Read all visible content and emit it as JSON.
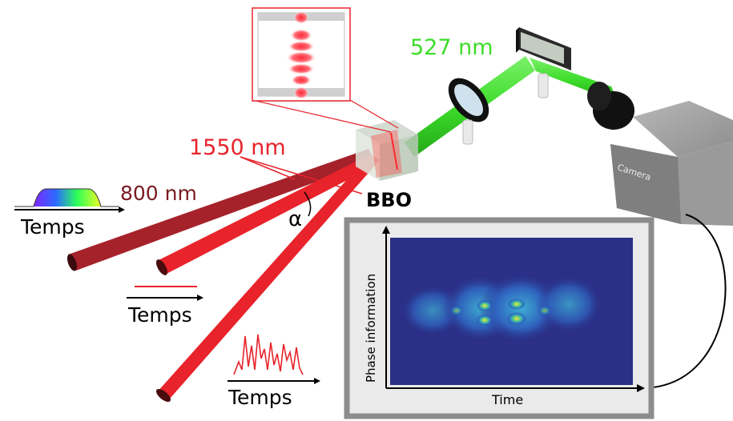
{
  "labels": {
    "green_wavelength": "527 nm",
    "red_wavelength": "1550 nm",
    "dark_red_wavelength": "800 nm",
    "crystal": "BBO",
    "angle": "α",
    "camera": "Camera"
  },
  "time_axes": {
    "axis_top_left": "Temps",
    "axis_middle": "Temps",
    "axis_bottom": "Temps"
  },
  "spectrogram": {
    "ylabel": "Phase information",
    "xlabel": "Time"
  },
  "colors": {
    "green_beam": "#3ddc2a",
    "red_beam": "#e8232b",
    "dark_red_beam": "#a5222a",
    "heatmap_background": "#2b2f86",
    "camera_body": "#8a8a8a"
  }
}
